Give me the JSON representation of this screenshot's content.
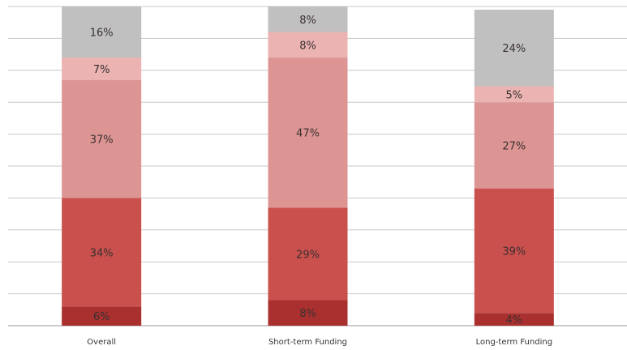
{
  "chart_data": {
    "type": "bar",
    "stacked": true,
    "categories": [
      "Overall",
      "Short-term Funding",
      "Long-term Funding"
    ],
    "series": [
      {
        "values": [
          6,
          8,
          4
        ],
        "color": "#a9302f"
      },
      {
        "values": [
          34,
          29,
          39
        ],
        "color": "#c9504d"
      },
      {
        "values": [
          37,
          47,
          27
        ],
        "color": "#dc9593"
      },
      {
        "values": [
          7,
          8,
          5
        ],
        "color": "#ebb3b2"
      },
      {
        "values": [
          16,
          8,
          24
        ],
        "color": "#c0c0c0"
      }
    ],
    "value_format": "{v}%",
    "ylim": [
      0,
      100
    ],
    "grid": true,
    "legend": "none"
  }
}
